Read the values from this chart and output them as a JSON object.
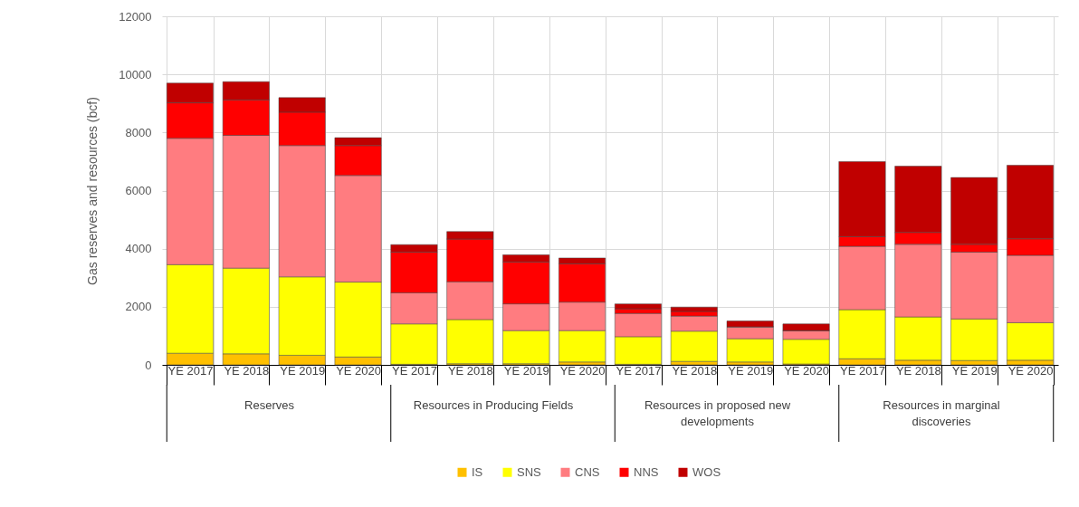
{
  "chart_data": {
    "type": "bar",
    "stacked": true,
    "ylabel": "Gas reserves and resources (bcf)",
    "categories": [
      "YE 2017",
      "YE 2018",
      "YE 2019",
      "YE 2020",
      "YE 2017",
      "YE 2018",
      "YE 2019",
      "YE 2020",
      "YE 2017",
      "YE 2018",
      "YE 2019",
      "YE 2020",
      "YE 2017",
      "YE 2018",
      "YE 2019",
      "YE 2020"
    ],
    "series": [
      {
        "name": "IS",
        "color": "#ffc000",
        "values": [
          400,
          380,
          330,
          270,
          20,
          40,
          40,
          100,
          20,
          120,
          100,
          30,
          210,
          160,
          150,
          160
        ]
      },
      {
        "name": "SNS",
        "color": "#ffff00",
        "values": [
          3050,
          2950,
          2700,
          2580,
          1390,
          1520,
          1140,
          1080,
          950,
          1040,
          800,
          850,
          1690,
          1490,
          1430,
          1290
        ]
      },
      {
        "name": "CNS",
        "color": "#ff7c80",
        "values": [
          4350,
          4570,
          4520,
          3670,
          1070,
          1300,
          920,
          980,
          800,
          520,
          410,
          300,
          2180,
          2500,
          2300,
          2320
        ]
      },
      {
        "name": "NNS",
        "color": "#ff0000",
        "values": [
          1220,
          1220,
          1150,
          1030,
          1400,
          1470,
          1440,
          1320,
          160,
          160,
          0,
          0,
          330,
          410,
          270,
          570
        ]
      },
      {
        "name": "WOS",
        "color": "#c00000",
        "values": [
          680,
          630,
          500,
          270,
          260,
          260,
          250,
          200,
          170,
          150,
          200,
          230,
          2590,
          2280,
          2300,
          2530
        ]
      }
    ],
    "ylim": [
      0,
      12000
    ],
    "yticks": [
      0,
      2000,
      4000,
      6000,
      8000,
      10000,
      12000
    ],
    "grid": true,
    "legend": "bottom",
    "annotations": [
      "Reserves",
      "Resources in Producing Fields",
      "Resources in proposed new developments",
      "Resources in marginal discoveries"
    ]
  }
}
